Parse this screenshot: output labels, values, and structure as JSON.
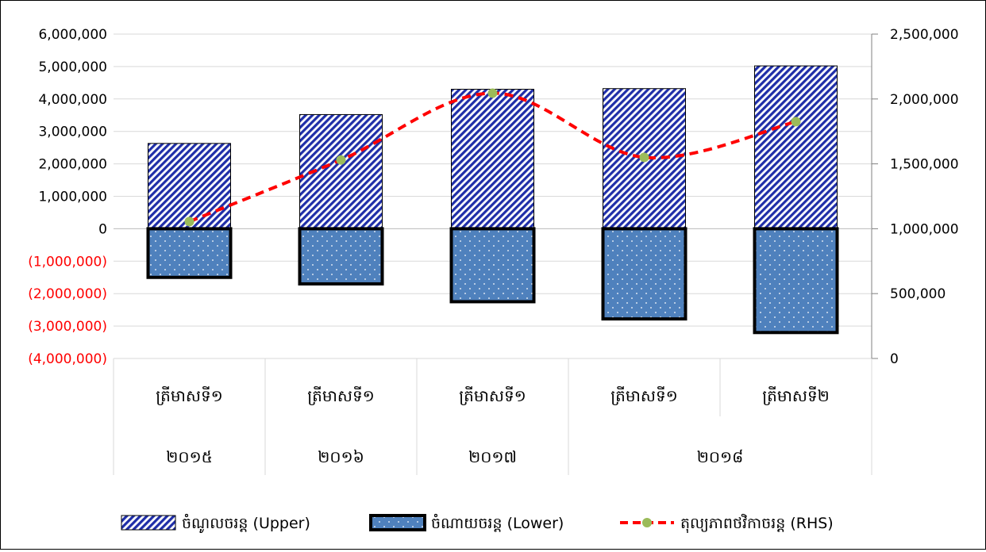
{
  "chart_data": {
    "type": "bar",
    "categories": [
      {
        "quarter": "ត្រីមាសទី១",
        "year": "២០១៥"
      },
      {
        "quarter": "ត្រីមាសទី១",
        "year": "២០១៦"
      },
      {
        "quarter": "ត្រីមាសទី១",
        "year": "២០១៧"
      },
      {
        "quarter": "ត្រីមាសទី១",
        "year": "២០១៨"
      },
      {
        "quarter": "ត្រីមាសទី២",
        "year": "២០១៨"
      }
    ],
    "year_groups": [
      {
        "label": "២០១៥",
        "span": 1
      },
      {
        "label": "២០១៦",
        "span": 1
      },
      {
        "label": "២០១៧",
        "span": 1
      },
      {
        "label": "២០១៨",
        "span": 2
      }
    ],
    "series": [
      {
        "name": "ចំណូលចរន្ត (Upper)",
        "kind": "bar",
        "axis": "left",
        "values": [
          2630000,
          3520000,
          4300000,
          4320000,
          5020000
        ]
      },
      {
        "name": "ចំណាយចរន្ត (Lower)",
        "kind": "bar",
        "axis": "left",
        "values": [
          -1500000,
          -1700000,
          -2250000,
          -2780000,
          -3200000
        ]
      },
      {
        "name": "តុល្យភាពថវិកាចរន្ត (RHS)",
        "kind": "line",
        "axis": "right",
        "values": [
          1055000,
          1530000,
          2045000,
          1550000,
          1825000
        ]
      }
    ],
    "y_left": {
      "min": -4000000,
      "max": 6000000,
      "step": 1000000,
      "tick_labels": [
        "(4,000,000)",
        "(3,000,000)",
        "(2,000,000)",
        "(1,000,000)",
        "0",
        "1,000,000",
        "2,000,000",
        "3,000,000",
        "4,000,000",
        "5,000,000",
        "6,000,000"
      ]
    },
    "y_right": {
      "min": 0,
      "max": 2500000,
      "step": 500000,
      "tick_labels": [
        "0",
        "500,000",
        "1,000,000",
        "1,500,000",
        "2,000,000",
        "2,500,000"
      ]
    },
    "grid": true,
    "legend_position": "bottom",
    "colors": {
      "upper_fill": "#1f2ea8",
      "lower_fill": "#4f81bd",
      "line": "#ff0000",
      "marker": "#9bbb59",
      "negative_label": "#ff0000"
    }
  }
}
